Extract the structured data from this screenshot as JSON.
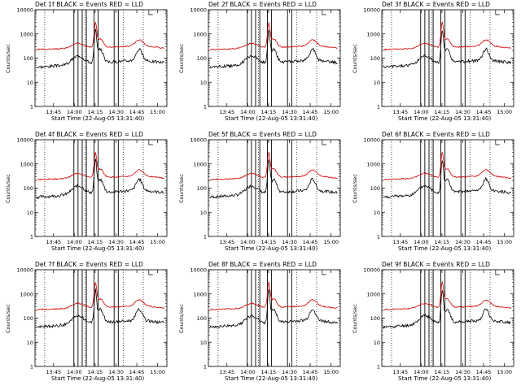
{
  "colors": {
    "events": "#000000",
    "lld": "#d10000",
    "background": "#ffffff"
  },
  "chart_data": [
    {
      "type": "line",
      "title": "Det 1f BLACK = Events RED = LLD",
      "xlabel": "Start Time (22-Aug-05 13:31:40)",
      "ylabel": "Counts/sec",
      "yscale": "log",
      "ylim": [
        1,
        10000
      ],
      "xtick_labels": [
        "13:45",
        "14:00",
        "14:15",
        "14:30",
        "14:45",
        "15:00"
      ],
      "ytick_labels": [
        "1",
        "10",
        "100",
        "1000",
        "10000"
      ],
      "series": [
        {
          "name": "Events",
          "color": "#000000"
        },
        {
          "name": "LLD",
          "color": "#d10000"
        }
      ]
    },
    {
      "type": "line",
      "title": "Det 2f BLACK = Events RED = LLD",
      "xlabel": "Start Time (22-Aug-05 13:31:40)",
      "ylabel": "Counts/sec",
      "yscale": "log",
      "ylim": [
        1,
        10000
      ],
      "xtick_labels": [
        "13:45",
        "14:00",
        "14:15",
        "14:30",
        "14:45",
        "15:00"
      ],
      "ytick_labels": [
        "1",
        "10",
        "100",
        "1000",
        "10000"
      ],
      "series": [
        {
          "name": "Events",
          "color": "#000000"
        },
        {
          "name": "LLD",
          "color": "#d10000"
        }
      ]
    },
    {
      "type": "line",
      "title": "Det 3f BLACK = Events RED = LLD",
      "xlabel": "Start Time (22-Aug-05 13:31:40)",
      "ylabel": "Counts/sec",
      "yscale": "log",
      "ylim": [
        1,
        10000
      ],
      "xtick_labels": [
        "13:45",
        "14:00",
        "14:15",
        "14:30",
        "14:45",
        "15:00"
      ],
      "ytick_labels": [
        "1",
        "10",
        "100",
        "1000",
        "10000"
      ],
      "series": [
        {
          "name": "Events",
          "color": "#000000"
        },
        {
          "name": "LLD",
          "color": "#d10000"
        }
      ]
    },
    {
      "type": "line",
      "title": "Det 4f BLACK = Events RED = LLD",
      "xlabel": "Start Time (22-Aug-05 13:31:40)",
      "ylabel": "Counts/sec",
      "yscale": "log",
      "ylim": [
        1,
        10000
      ],
      "xtick_labels": [
        "13:45",
        "14:00",
        "14:15",
        "14:30",
        "14:45",
        "15:00"
      ],
      "ytick_labels": [
        "1",
        "10",
        "100",
        "1000",
        "10000"
      ],
      "series": [
        {
          "name": "Events",
          "color": "#000000"
        },
        {
          "name": "LLD",
          "color": "#d10000"
        }
      ]
    },
    {
      "type": "line",
      "title": "Det 5f BLACK = Events RED = LLD",
      "xlabel": "Start Time (22-Aug-05 13:31:40)",
      "ylabel": "Counts/sec",
      "yscale": "log",
      "ylim": [
        1,
        10000
      ],
      "xtick_labels": [
        "13:45",
        "14:00",
        "14:15",
        "14:30",
        "14:45",
        "15:00"
      ],
      "ytick_labels": [
        "1",
        "10",
        "100",
        "1000",
        "10000"
      ],
      "series": [
        {
          "name": "Events",
          "color": "#000000"
        },
        {
          "name": "LLD",
          "color": "#d10000"
        }
      ]
    },
    {
      "type": "line",
      "title": "Det 6f BLACK = Events RED = LLD",
      "xlabel": "Start Time (22-Aug-05 13:31:40)",
      "ylabel": "Counts/sec",
      "yscale": "log",
      "ylim": [
        1,
        10000
      ],
      "xtick_labels": [
        "13:45",
        "14:00",
        "14:15",
        "14:30",
        "14:45",
        "15:00"
      ],
      "ytick_labels": [
        "1",
        "10",
        "100",
        "1000",
        "10000"
      ],
      "series": [
        {
          "name": "Events",
          "color": "#000000"
        },
        {
          "name": "LLD",
          "color": "#d10000"
        }
      ]
    },
    {
      "type": "line",
      "title": "Det 7f BLACK = Events RED = LLD",
      "xlabel": "Start Time (22-Aug-05 13:31:40)",
      "ylabel": "Counts/sec",
      "yscale": "log",
      "ylim": [
        1,
        10000
      ],
      "xtick_labels": [
        "13:45",
        "14:00",
        "14:15",
        "14:30",
        "14:45",
        "15:00"
      ],
      "ytick_labels": [
        "1",
        "10",
        "100",
        "1000",
        "10000"
      ],
      "series": [
        {
          "name": "Events",
          "color": "#000000"
        },
        {
          "name": "LLD",
          "color": "#d10000"
        }
      ]
    },
    {
      "type": "line",
      "title": "Det 8f BLACK = Events RED = LLD",
      "xlabel": "Start Time (22-Aug-05 13:31:40)",
      "ylabel": "Counts/sec",
      "yscale": "log",
      "ylim": [
        1,
        10000
      ],
      "xtick_labels": [
        "13:45",
        "14:00",
        "14:15",
        "14:30",
        "14:45",
        "15:00"
      ],
      "ytick_labels": [
        "1",
        "10",
        "100",
        "1000",
        "10000"
      ],
      "series": [
        {
          "name": "Events",
          "color": "#000000"
        },
        {
          "name": "LLD",
          "color": "#d10000"
        }
      ]
    },
    {
      "type": "line",
      "title": "Det 9f BLACK = Events RED = LLD",
      "xlabel": "Start Time (22-Aug-05 13:31:40)",
      "ylabel": "Counts/sec",
      "yscale": "log",
      "ylim": [
        1,
        10000
      ],
      "xtick_labels": [
        "13:45",
        "14:00",
        "14:15",
        "14:30",
        "14:45",
        "15:00"
      ],
      "ytick_labels": [
        "1",
        "10",
        "100",
        "1000",
        "10000"
      ],
      "series": [
        {
          "name": "Events",
          "color": "#000000"
        },
        {
          "name": "LLD",
          "color": "#d10000"
        }
      ]
    }
  ]
}
